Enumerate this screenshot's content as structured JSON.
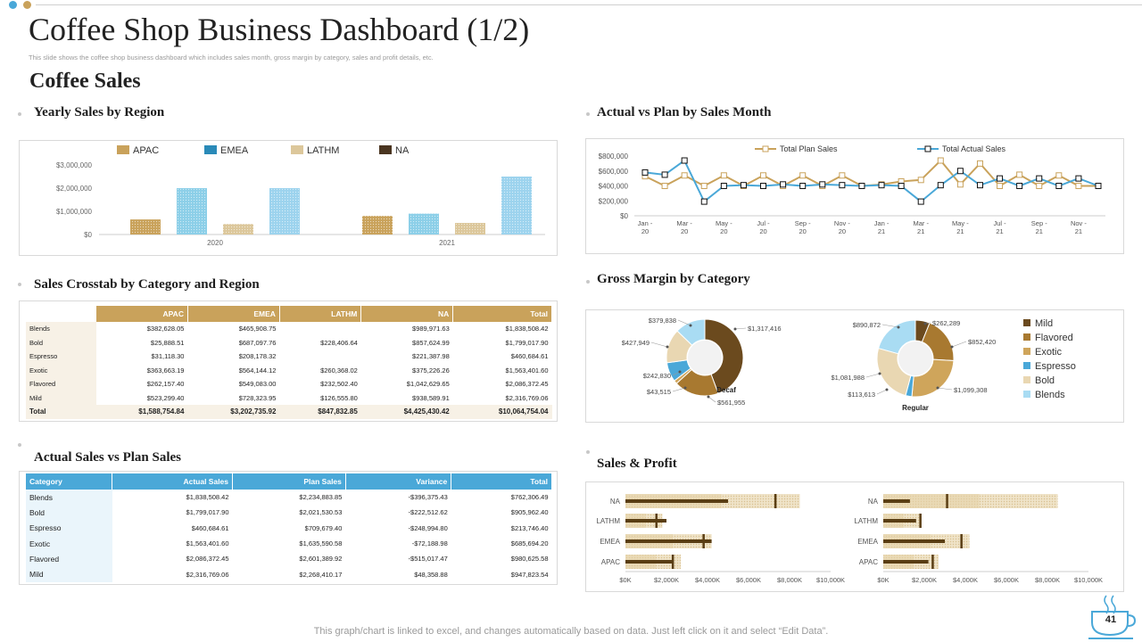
{
  "header": {
    "title": "Coffee Shop Business Dashboard (1/2)",
    "subtitle": "This slide shows the coffee shop business dashboard which includes sales month, gross margin by category, sales and profit details, etc.",
    "section": "Coffee Sales"
  },
  "panels": {
    "yearly": "Yearly Sales by Region",
    "actual_plan_month": "Actual vs Plan by Sales Month",
    "crosstab": "Sales Crosstab by Category and Region",
    "gross_margin": "Gross Margin by Category",
    "actual_vs_plan": "Actual Sales vs Plan Sales",
    "sales_profit": "Sales & Profit"
  },
  "footer": {
    "note": "This graph/chart is linked to excel,  and changes automatically based on data. Just left click on it and select “Edit Data”.",
    "page": "41"
  },
  "colors": {
    "apac": "#c9a25b",
    "emea": "#2a8ab8",
    "lathm": "#dcc79b",
    "na": "#4a3520",
    "blue": "#4aa8d8",
    "gold": "#c9a25b"
  },
  "crosstab": {
    "headers": [
      "",
      "APAC",
      "EMEA",
      "LATHM",
      "NA",
      "Total"
    ],
    "rows": [
      [
        "Blends",
        "$382,628.05",
        "$465,908.75",
        "",
        "$989,971.63",
        "$1,838,508.42"
      ],
      [
        "Bold",
        "$25,888.51",
        "$687,097.76",
        "$228,406.64",
        "$857,624.99",
        "$1,799,017.90"
      ],
      [
        "Espresso",
        "$31,118.30",
        "$208,178.32",
        "",
        "$221,387.98",
        "$460,684.61"
      ],
      [
        "Exotic",
        "$363,663.19",
        "$564,144.12",
        "$260,368.02",
        "$375,226.26",
        "$1,563,401.60"
      ],
      [
        "Flavored",
        "$262,157.40",
        "$549,083.00",
        "$232,502.40",
        "$1,042,629.65",
        "$2,086,372.45"
      ],
      [
        "Mild",
        "$523,299.40",
        "$728,323.95",
        "$126,555.80",
        "$938,589.91",
        "$2,316,769.06"
      ]
    ],
    "total": [
      "Total",
      "$1,588,754.84",
      "$3,202,735.92",
      "$847,832.85",
      "$4,425,430.42",
      "$10,064,754.04"
    ]
  },
  "plan_table": {
    "headers": [
      "Category",
      "Actual  Sales",
      "Plan Sales",
      "Variance",
      "Total"
    ],
    "rows": [
      [
        "Blends",
        "$1,838,508.42",
        "$2,234,883.85",
        "-$396,375.43",
        "$762,306.49"
      ],
      [
        "Bold",
        "$1,799,017.90",
        "$2,021,530.53",
        "-$222,512.62",
        "$905,962.40"
      ],
      [
        "Espresso",
        "$460,684.61",
        "$709,679.40",
        "-$248,994.80",
        "$213,746.40"
      ],
      [
        "Exotic",
        "$1,563,401.60",
        "$1,635,590.58",
        "-$72,188.98",
        "$685,694.20"
      ],
      [
        "Flavored",
        "$2,086,372.45",
        "$2,601,389.92",
        "-$515,017.47",
        "$980,625.58"
      ],
      [
        "Mild",
        "$2,316,769.06",
        "$2,268,410.17",
        "$48,358.88",
        "$947,823.54"
      ]
    ]
  },
  "chart_data": [
    {
      "id": "yearly",
      "type": "bar",
      "title": "Yearly Sales by Region",
      "categories": [
        "2020",
        "2021"
      ],
      "series": [
        {
          "name": "APAC",
          "values": [
            650000,
            800000
          ]
        },
        {
          "name": "EMEA",
          "values": [
            2000000,
            900000
          ]
        },
        {
          "name": "LATHM",
          "values": [
            450000,
            500000
          ]
        },
        {
          "name": "NA",
          "values": [
            2000000,
            2500000
          ]
        }
      ],
      "yticks": [
        "$0",
        "$1,000,000",
        "$2,000,000",
        "$3,000,000"
      ],
      "ylim": [
        0,
        3000000
      ]
    },
    {
      "id": "month",
      "type": "line",
      "title": "Actual vs Plan by Sales Month",
      "x": [
        "Jan-20",
        "Feb-20",
        "Mar-20",
        "Apr-20",
        "May-20",
        "Jun-20",
        "Jul-20",
        "Aug-20",
        "Sep-20",
        "Oct-20",
        "Nov-20",
        "Dec-20",
        "Jan-21",
        "Feb-21",
        "Mar-21",
        "Apr-21",
        "May-21",
        "Jun-21",
        "Jul-21",
        "Aug-21",
        "Sep-21",
        "Oct-21",
        "Nov-21",
        "Dec-21"
      ],
      "xticks": [
        [
          "Jan -",
          "20"
        ],
        [
          "Mar -",
          "20"
        ],
        [
          "May -",
          "20"
        ],
        [
          "Jul -",
          "20"
        ],
        [
          "Sep -",
          "20"
        ],
        [
          "Nov -",
          "20"
        ],
        [
          "Jan -",
          "21"
        ],
        [
          "Mar -",
          "21"
        ],
        [
          "May -",
          "21"
        ],
        [
          "Jul -",
          "21"
        ],
        [
          "Sep -",
          "21"
        ],
        [
          "Nov -",
          "21"
        ]
      ],
      "series": [
        {
          "name": "Total Plan Sales",
          "values": [
            530000,
            400000,
            540000,
            400000,
            540000,
            400000,
            540000,
            400000,
            540000,
            400000,
            540000,
            400000,
            420000,
            460000,
            480000,
            740000,
            420000,
            700000,
            400000,
            550000,
            400000,
            540000,
            400000,
            400000
          ]
        },
        {
          "name": "Total Actual Sales",
          "values": [
            580000,
            550000,
            740000,
            190000,
            400000,
            410000,
            400000,
            420000,
            400000,
            420000,
            410000,
            400000,
            410000,
            400000,
            190000,
            410000,
            600000,
            410000,
            500000,
            400000,
            500000,
            400000,
            500000,
            400000
          ]
        }
      ],
      "yticks": [
        "$0",
        "$200,000",
        "$400,000",
        "$600,000",
        "$800,000"
      ],
      "ylim": [
        0,
        800000
      ]
    },
    {
      "id": "decaf",
      "type": "pie",
      "title": "Decaf",
      "labels": [
        "Mild",
        "Flavored",
        "Exotic",
        "Espresso",
        "Bold",
        "Blends"
      ],
      "values": [
        1317416,
        561955,
        43515,
        242830,
        427949,
        379838
      ],
      "value_labels": [
        "$1,317,416",
        "$561,955",
        "$43,515",
        "$242,830",
        "$427,949",
        "$379,838"
      ]
    },
    {
      "id": "regular",
      "type": "pie",
      "title": "Regular",
      "labels": [
        "Mild",
        "Flavored",
        "Exotic",
        "Espresso",
        "Bold",
        "Blends"
      ],
      "values": [
        262289,
        852420,
        1099308,
        113613,
        1081988,
        890872
      ],
      "value_labels": [
        "$262,289",
        "$852,420",
        "$1,099,308",
        "$113,613",
        "$1,081,988",
        "$890,872"
      ]
    },
    {
      "id": "salesprofit",
      "type": "bar",
      "title": "Sales & Profit",
      "categories": [
        "NA",
        "LATHM",
        "EMEA",
        "APAC"
      ],
      "xticks": [
        "$0K",
        "$2,000K",
        "$4,000K",
        "$6,000K",
        "$8,000K",
        "$10,000K"
      ],
      "xlim": [
        0,
        10000
      ],
      "series": [
        {
          "name": "Left band",
          "values": [
            8500,
            1800,
            4200,
            2700
          ]
        },
        {
          "name": "Left sales",
          "values": [
            5000,
            2000,
            4200,
            2300
          ]
        },
        {
          "name": "Left target",
          "values": [
            7300,
            1500,
            3800,
            2300
          ]
        },
        {
          "name": "Right band",
          "values": [
            8500,
            1800,
            4200,
            2700
          ]
        },
        {
          "name": "Right sales",
          "values": [
            1300,
            1600,
            3000,
            2200
          ]
        },
        {
          "name": "Right target",
          "values": [
            3100,
            1800,
            3800,
            2400
          ]
        }
      ]
    }
  ],
  "legends": {
    "yearly": [
      "APAC",
      "EMEA",
      "LATHM",
      "NA"
    ],
    "month": [
      "Total Plan Sales",
      "Total Actual Sales"
    ],
    "gross": [
      "Mild",
      "Flavored",
      "Exotic",
      "Espresso",
      "Bold",
      "Blends"
    ]
  }
}
